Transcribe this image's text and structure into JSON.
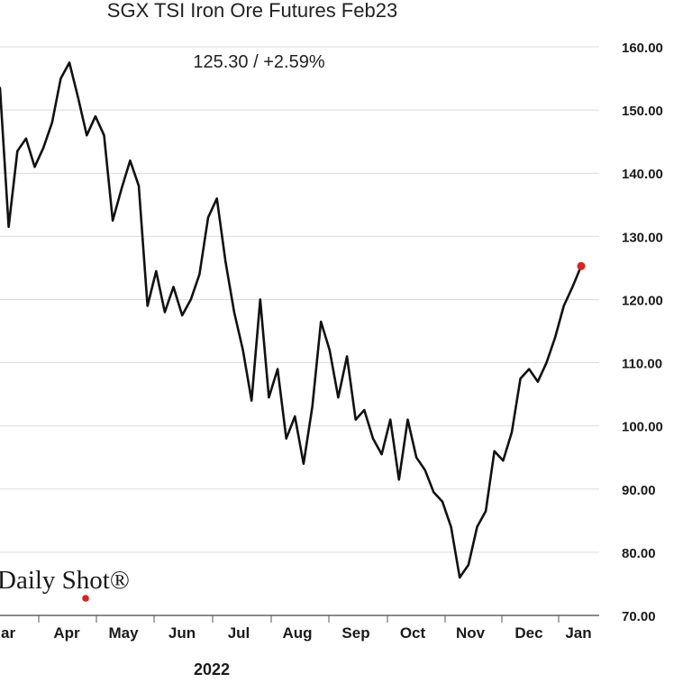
{
  "chart_data": {
    "type": "line",
    "title": "SGX TSI Iron Ore Futures Feb23",
    "subtitle": "125.30  /  +2.59%",
    "year_label": "2022",
    "xlabel": "",
    "ylabel": "",
    "ylim": [
      70,
      160
    ],
    "yticks": [
      "70.00",
      "80.00",
      "90.00",
      "100.00",
      "110.00",
      "120.00",
      "130.00",
      "140.00",
      "150.00",
      "160.00"
    ],
    "x_tick_labels": [
      "Mar",
      "Apr",
      "May",
      "Jun",
      "Jul",
      "Aug",
      "Sep",
      "Oct",
      "Nov",
      "Dec",
      "Jan"
    ],
    "grid": "horizontal",
    "line_color": "#111111",
    "marker_color": "#e0211a",
    "last_value": 125.3,
    "series": [
      {
        "values": [
          153.5,
          131.5,
          143.5,
          145.5,
          141.0,
          144.0,
          148.0,
          155.0,
          157.5,
          152.0,
          146.0,
          149.0,
          146.0,
          132.5,
          137.5,
          142.0,
          138.0,
          119.0,
          124.5,
          118.0,
          122.0,
          117.5,
          120.0,
          124.0,
          133.0,
          136.0,
          126.0,
          118.0,
          112.0,
          104.0,
          120.0,
          104.5,
          109.0,
          98.0,
          101.5,
          94.0,
          103.0,
          116.5,
          112.0,
          104.5,
          111.0,
          101.0,
          102.5,
          98.0,
          95.5,
          101.0,
          91.5,
          101.0,
          95.0,
          93.0,
          89.5,
          88.0,
          84.0,
          76.0,
          78.0,
          84.0,
          86.5,
          96.0,
          94.5,
          99.0,
          107.5,
          109.0,
          107.0,
          110.0,
          114.0,
          119.0,
          122.0,
          125.3
        ]
      }
    ],
    "source_logo": "Daily Shot®"
  }
}
